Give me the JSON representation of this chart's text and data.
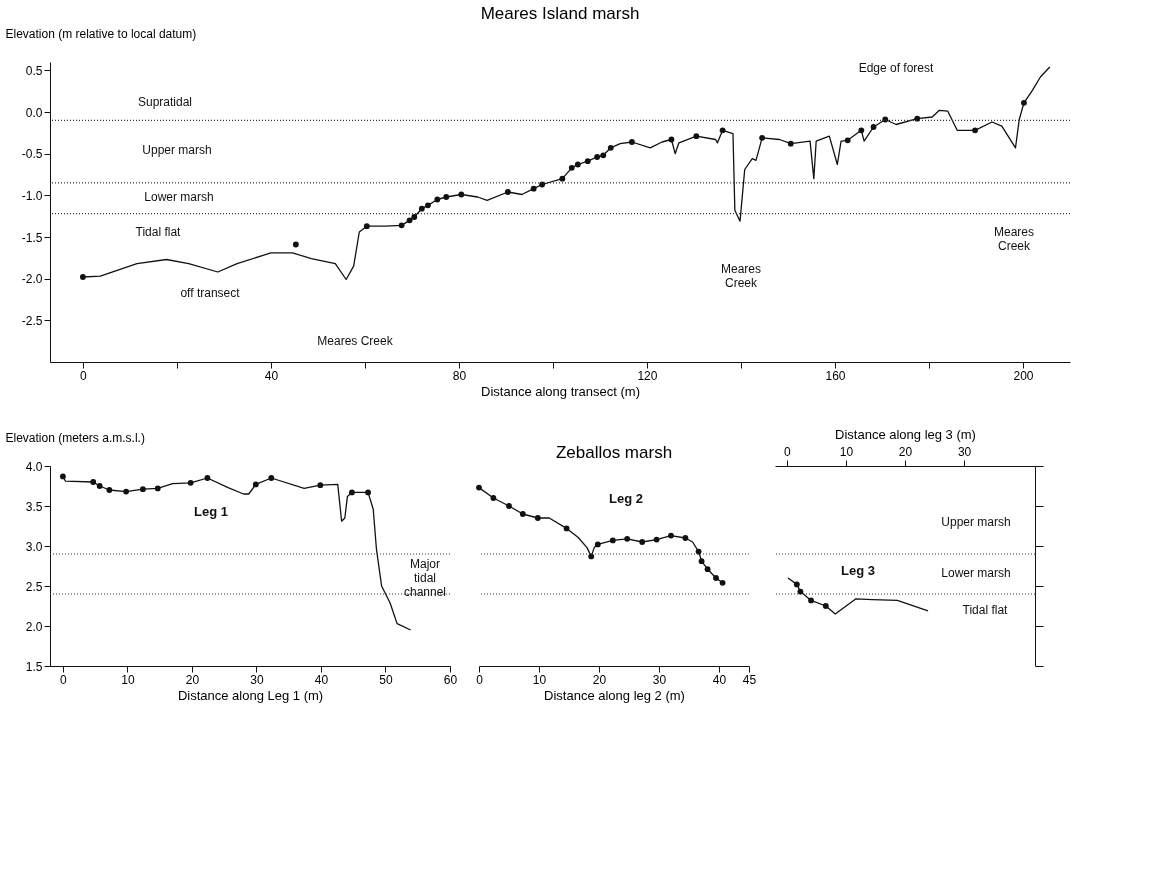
{
  "chart_data": [
    {
      "type": "line",
      "title": "Meares Island marsh",
      "xlabel": "Distance along transect (m)",
      "ylabel": "Elevation (m relative to local datum)",
      "xlim": [
        -7,
        210
      ],
      "ylim": [
        -3.0,
        0.6
      ],
      "xticks": [
        0,
        {
          "value": 20,
          "label": null
        },
        40,
        {
          "value": 60,
          "label": null
        },
        80,
        {
          "value": 100,
          "label": null
        },
        120,
        {
          "value": 140,
          "label": null
        },
        160,
        {
          "value": 180,
          "label": null
        },
        200
      ],
      "yticks": [
        0.5,
        {
          "value": 0,
          "label": "0.0"
        },
        -0.5,
        {
          "value": -1,
          "label": "-1.0"
        },
        -1.5,
        {
          "value": -2,
          "label": "-2.0"
        },
        -2.5
      ],
      "series": [
        {
          "color": "#111111",
          "x": [
            0,
            3.7,
            11.5,
            17.8,
            22.5,
            28.7,
            32.8,
            40,
            44.6,
            48.6,
            53.7,
            56,
            57.6,
            58.8,
            60.4,
            64.3,
            67.8,
            69.5,
            70.5,
            72.1,
            73.4,
            75.4,
            77.3,
            80.5,
            84,
            86,
            90.4,
            93.4,
            95.9,
            97.7,
            102,
            104,
            105.3,
            107.4,
            109.4,
            110.7,
            112.3,
            114.3,
            116.8,
            120.7,
            123.2,
            125.2,
            126,
            126.8,
            130.5,
            134.6,
            135,
            136.1,
            138.3,
            138.7,
            139.8,
            140.8,
            142.4,
            143.2,
            144.5,
            148.2,
            150.6,
            154.7,
            155.5,
            156,
            158.8,
            160.5,
            161.3,
            162.7,
            165.6,
            166.2,
            168.2,
            170.7,
            173,
            177.5,
            180.7,
            182.2,
            184,
            186,
            189.8,
            193.4,
            195.5,
            198.4,
            199.2,
            200.2,
            202,
            203.7,
            205.7
          ],
          "values": [
            -1.98,
            -1.97,
            -1.82,
            -1.77,
            -1.82,
            -1.92,
            -1.82,
            -1.69,
            -1.69,
            -1.76,
            -1.82,
            -2.01,
            -1.85,
            -1.44,
            -1.37,
            -1.37,
            -1.36,
            -1.3,
            -1.26,
            -1.16,
            -1.12,
            -1.05,
            -1.02,
            -0.99,
            -1.02,
            -1.06,
            -0.96,
            -0.99,
            -0.92,
            -0.87,
            -0.8,
            -0.67,
            -0.63,
            -0.59,
            -0.54,
            -0.52,
            -0.43,
            -0.38,
            -0.36,
            -0.43,
            -0.36,
            -0.33,
            -0.5,
            -0.37,
            -0.29,
            -0.33,
            -0.37,
            -0.22,
            -0.26,
            -1.18,
            -1.31,
            -0.69,
            -0.56,
            -0.58,
            -0.31,
            -0.33,
            -0.38,
            -0.35,
            -0.8,
            -0.35,
            -0.29,
            -0.63,
            -0.35,
            -0.34,
            -0.22,
            -0.35,
            -0.18,
            -0.09,
            -0.15,
            -0.08,
            -0.06,
            0.02,
            0.01,
            -0.22,
            -0.22,
            -0.12,
            -0.17,
            -0.43,
            -0.09,
            0.11,
            0.26,
            0.42,
            0.54
          ]
        },
        {
          "type": "scatter",
          "marker": "circle",
          "color": "#111111",
          "x": [
            0,
            45.3,
            60.4,
            67.8,
            69.5,
            70.5,
            72.1,
            73.4,
            75.4,
            77.3,
            80.5,
            90.4,
            95.9,
            97.7,
            102,
            104,
            105.3,
            107.4,
            109.4,
            110.7,
            112.3,
            116.8,
            125.2,
            130.5,
            136.1,
            144.5,
            150.6,
            162.7,
            165.6,
            168.2,
            170.7,
            177.5,
            189.8,
            200.2
          ],
          "values": [
            -1.98,
            -1.59,
            -1.37,
            -1.36,
            -1.3,
            -1.26,
            -1.16,
            -1.12,
            -1.05,
            -1.02,
            -0.99,
            -0.96,
            -0.92,
            -0.87,
            -0.8,
            -0.67,
            -0.63,
            -0.59,
            -0.54,
            -0.52,
            -0.43,
            -0.36,
            -0.33,
            -0.29,
            -0.22,
            -0.31,
            -0.38,
            -0.34,
            -0.22,
            -0.18,
            -0.09,
            -0.08,
            -0.22,
            0.11
          ]
        }
      ],
      "ref_lines": [
        {
          "axis": "y",
          "value": -0.1,
          "line_style": "dotted",
          "color": "#333333"
        },
        {
          "axis": "y",
          "value": -0.85,
          "line_style": "dotted",
          "color": "#333333"
        },
        {
          "axis": "y",
          "value": -1.22,
          "line_style": "dotted",
          "color": "#333333"
        }
      ],
      "annotations": [
        "Supratidal",
        "Upper marsh",
        "Lower marsh",
        "Tidal flat",
        "off transect",
        "Meares Creek",
        "Meares\nCreek",
        "Meares\nCreek",
        "Edge of forest"
      ]
    },
    {
      "type": "line",
      "xlabel": "Distance along Leg 1 (m)",
      "ylabel": "Elevation (meters a.m.s.l.)",
      "xlim": [
        -2,
        60
      ],
      "ylim": [
        1.5,
        4.0
      ],
      "xticks": [
        0,
        10,
        20,
        30,
        40,
        50,
        60
      ],
      "yticks": [
        1.5,
        {
          "value": 2,
          "label": "2.0"
        },
        2.5,
        {
          "value": 3,
          "label": "3.0"
        },
        3.5,
        {
          "value": 4,
          "label": "4.0"
        }
      ],
      "series": [
        {
          "color": "#111111",
          "x": [
            0,
            0.4,
            4.7,
            5.7,
            7.2,
            9.8,
            12.4,
            14.7,
            17,
            19.8,
            22.4,
            25.6,
            28,
            28.8,
            29.9,
            32.3,
            37.4,
            39.9,
            42.6,
            43.2,
            43.7,
            44.1,
            44.8,
            47.3,
            48.1,
            48.6,
            49.4,
            50.7,
            51.8,
            53.9
          ],
          "values": [
            3.87,
            3.81,
            3.8,
            3.75,
            3.7,
            3.68,
            3.71,
            3.72,
            3.78,
            3.79,
            3.85,
            3.73,
            3.65,
            3.65,
            3.77,
            3.85,
            3.72,
            3.76,
            3.77,
            3.31,
            3.35,
            3.62,
            3.67,
            3.67,
            3.46,
            2.96,
            2.5,
            2.29,
            2.03,
            1.95
          ]
        },
        {
          "type": "scatter",
          "marker": "circle",
          "color": "#111111",
          "x": [
            0,
            4.7,
            5.7,
            7.2,
            9.8,
            12.4,
            14.7,
            19.8,
            22.4,
            29.9,
            32.3,
            39.9,
            44.8,
            47.3
          ],
          "values": [
            3.87,
            3.8,
            3.75,
            3.7,
            3.68,
            3.71,
            3.72,
            3.79,
            3.85,
            3.77,
            3.85,
            3.76,
            3.67,
            3.67
          ]
        }
      ],
      "ref_lines": [
        {
          "axis": "y",
          "value": 2.9,
          "line_style": "dotted",
          "color": "#333333"
        },
        {
          "axis": "y",
          "value": 2.4,
          "line_style": "dotted",
          "color": "#333333"
        }
      ],
      "annotations": [
        "Leg 1",
        "Major\ntidal\nchannel"
      ]
    },
    {
      "type": "line",
      "title": "Zeballos marsh",
      "xlabel": "Distance along leg 2 (m)",
      "tick_labels": "x",
      "xlim": [
        0,
        45
      ],
      "ylim": [
        1.5,
        4.0
      ],
      "xticks": [
        0,
        10,
        20,
        30,
        40,
        45
      ],
      "series": [
        {
          "color": "#111111",
          "x": [
            0,
            2.4,
            5,
            7.3,
            9.8,
            11.7,
            14.6,
            16.5,
            18,
            18.7,
            19.2,
            19.8,
            22.3,
            24.7,
            27.2,
            29.6,
            32,
            34.4,
            35.6,
            36.6,
            37.1,
            38.1,
            39.5,
            40.6
          ],
          "values": [
            3.73,
            3.6,
            3.5,
            3.4,
            3.35,
            3.35,
            3.22,
            3.11,
            2.98,
            2.87,
            2.98,
            3.02,
            3.07,
            3.09,
            3.05,
            3.08,
            3.13,
            3.1,
            3.05,
            2.93,
            2.81,
            2.71,
            2.6,
            2.54
          ]
        },
        {
          "type": "scatter",
          "marker": "circle",
          "color": "#111111",
          "x": [
            0,
            2.4,
            5,
            7.3,
            9.8,
            14.6,
            18.7,
            19.8,
            22.3,
            24.7,
            27.2,
            29.6,
            32,
            34.4,
            36.6,
            37.1,
            38.1,
            39.5,
            40.6
          ],
          "values": [
            3.73,
            3.6,
            3.5,
            3.4,
            3.35,
            3.22,
            2.87,
            3.02,
            3.07,
            3.09,
            3.05,
            3.08,
            3.13,
            3.1,
            2.93,
            2.81,
            2.71,
            2.6,
            2.54
          ]
        }
      ],
      "ref_lines": [
        {
          "axis": "y",
          "value": 2.9,
          "line_style": "dotted",
          "color": "#333333"
        },
        {
          "axis": "y",
          "value": 2.4,
          "line_style": "dotted",
          "color": "#333333"
        }
      ],
      "annotations": [
        "Leg 2"
      ]
    },
    {
      "type": "line",
      "xlabel": "Distance along leg 3 (m)",
      "tick_labels": "x",
      "xlim": [
        -2,
        42
      ],
      "ylim": [
        1.5,
        4.0
      ],
      "xticks": [
        0,
        10,
        20,
        30
      ],
      "yticks": [
        {
          "value": 1.5,
          "label": null
        },
        {
          "value": 2,
          "label": null
        },
        {
          "value": 2.5,
          "label": null
        },
        {
          "value": 3,
          "label": null
        },
        {
          "value": 3.5,
          "label": null
        },
        {
          "value": 4,
          "label": null
        }
      ],
      "series": [
        {
          "color": "#111111",
          "x": [
            0.2,
            1.7,
            2.3,
            4.1,
            6.6,
            8.2,
            11.7,
            14.5,
            18.7,
            23.9
          ],
          "values": [
            2.6,
            2.52,
            2.43,
            2.32,
            2.25,
            2.15,
            2.34,
            2.33,
            2.32,
            2.19
          ]
        },
        {
          "type": "scatter",
          "marker": "circle",
          "color": "#111111",
          "x": [
            1.7,
            2.3,
            4.1,
            6.6
          ],
          "values": [
            2.52,
            2.43,
            2.32,
            2.25
          ]
        }
      ],
      "ref_lines": [
        {
          "axis": "y",
          "value": 2.9,
          "line_style": "dotted",
          "color": "#333333"
        },
        {
          "axis": "y",
          "value": 2.4,
          "line_style": "dotted",
          "color": "#333333"
        }
      ],
      "annotations": [
        "Leg 3",
        "Upper marsh",
        "Lower marsh",
        "Tidal flat"
      ]
    }
  ]
}
